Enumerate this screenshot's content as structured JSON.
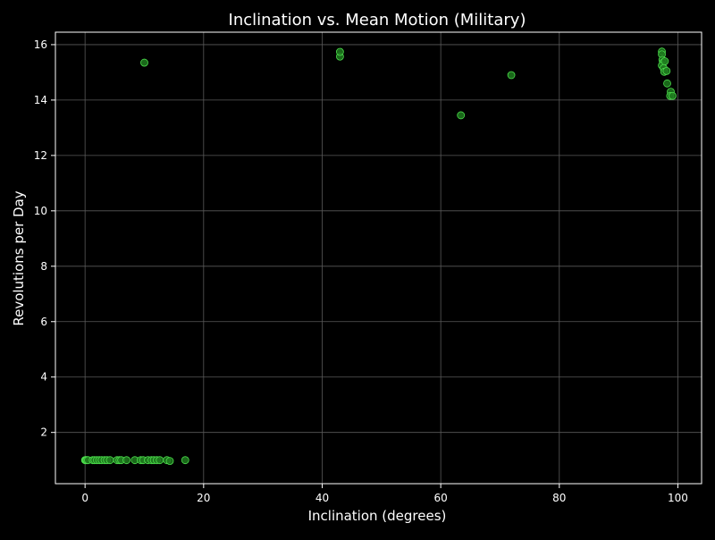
{
  "chart_data": {
    "type": "scatter",
    "title": "Inclination vs. Mean Motion (Military)",
    "xlabel": "Inclination (degrees)",
    "ylabel": "Revolutions per Day",
    "xlim": [
      -5,
      104
    ],
    "ylim": [
      0.15,
      16.45
    ],
    "xticks": [
      0,
      20,
      40,
      60,
      80,
      100
    ],
    "yticks": [
      2,
      4,
      6,
      8,
      10,
      12,
      14,
      16
    ],
    "grid": true,
    "legend": "none",
    "colors": {
      "background": "#000000",
      "text": "#ffffff",
      "grid": "#5a5a5a",
      "axes": "#ffffff",
      "marker_fill": "#1f7a1f",
      "marker_edge": "#4cdc4c"
    },
    "points": [
      {
        "x": 0.0,
        "y": 1.0
      },
      {
        "x": 0.1,
        "y": 1.0
      },
      {
        "x": 0.2,
        "y": 1.0
      },
      {
        "x": 0.3,
        "y": 1.0
      },
      {
        "x": 0.5,
        "y": 1.0
      },
      {
        "x": 1.3,
        "y": 1.0
      },
      {
        "x": 1.6,
        "y": 1.0
      },
      {
        "x": 2.0,
        "y": 1.0
      },
      {
        "x": 2.4,
        "y": 1.0
      },
      {
        "x": 2.8,
        "y": 1.0
      },
      {
        "x": 3.3,
        "y": 1.0
      },
      {
        "x": 3.7,
        "y": 1.0
      },
      {
        "x": 4.2,
        "y": 1.0
      },
      {
        "x": 5.4,
        "y": 1.0
      },
      {
        "x": 5.8,
        "y": 1.0
      },
      {
        "x": 6.1,
        "y": 1.0
      },
      {
        "x": 7.0,
        "y": 1.0
      },
      {
        "x": 8.4,
        "y": 1.0
      },
      {
        "x": 9.4,
        "y": 1.0
      },
      {
        "x": 9.8,
        "y": 1.0
      },
      {
        "x": 10.6,
        "y": 1.0
      },
      {
        "x": 11.2,
        "y": 1.0
      },
      {
        "x": 11.6,
        "y": 1.0
      },
      {
        "x": 12.1,
        "y": 1.0
      },
      {
        "x": 12.6,
        "y": 1.0
      },
      {
        "x": 13.8,
        "y": 1.0
      },
      {
        "x": 14.3,
        "y": 0.97
      },
      {
        "x": 16.9,
        "y": 1.0
      },
      {
        "x": 10.0,
        "y": 15.35
      },
      {
        "x": 43.0,
        "y": 15.57
      },
      {
        "x": 43.0,
        "y": 15.74
      },
      {
        "x": 63.4,
        "y": 13.45
      },
      {
        "x": 71.9,
        "y": 14.9
      },
      {
        "x": 97.3,
        "y": 15.75
      },
      {
        "x": 97.3,
        "y": 15.65
      },
      {
        "x": 97.4,
        "y": 15.45
      },
      {
        "x": 97.5,
        "y": 15.35
      },
      {
        "x": 97.3,
        "y": 15.25
      },
      {
        "x": 97.8,
        "y": 15.4
      },
      {
        "x": 97.6,
        "y": 15.15
      },
      {
        "x": 97.7,
        "y": 15.02
      },
      {
        "x": 98.1,
        "y": 15.05
      },
      {
        "x": 98.2,
        "y": 14.6
      },
      {
        "x": 98.8,
        "y": 14.3
      },
      {
        "x": 98.7,
        "y": 14.15
      },
      {
        "x": 99.1,
        "y": 14.15
      }
    ]
  }
}
